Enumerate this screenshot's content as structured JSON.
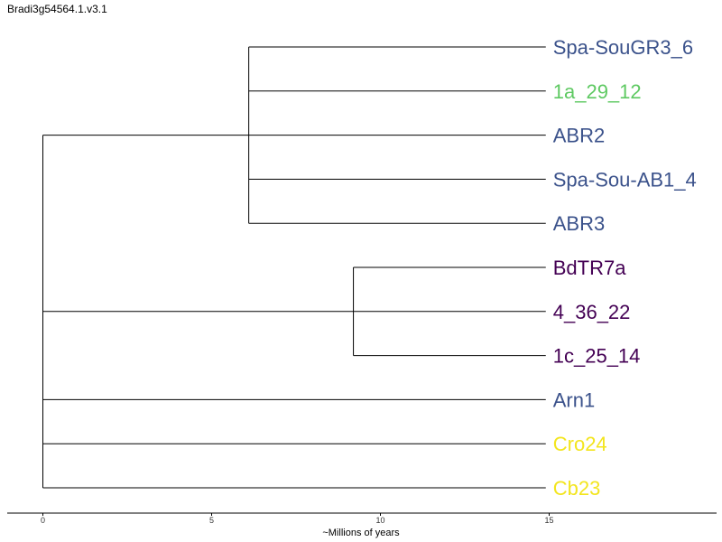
{
  "title": "Bradi3g54564.1.v3.1",
  "axis": {
    "label": "~Millions of years",
    "ticks": [
      {
        "value": 0,
        "label": "0"
      },
      {
        "value": 5,
        "label": "5"
      },
      {
        "value": 10,
        "label": "10"
      },
      {
        "value": 15,
        "label": "15"
      }
    ]
  },
  "colors": {
    "blue": "#3b528b",
    "green": "#5ec962",
    "purple": "#440154",
    "yellow": "#f3e51e"
  },
  "leaves": [
    {
      "name": "Spa-SouGR3_6",
      "color": "#3b528b"
    },
    {
      "name": "1a_29_12",
      "color": "#5ec962"
    },
    {
      "name": "ABR2",
      "color": "#3b528b"
    },
    {
      "name": "Spa-Sou-AB1_4",
      "color": "#3b528b"
    },
    {
      "name": "ABR3",
      "color": "#3b528b"
    },
    {
      "name": "BdTR7a",
      "color": "#440154"
    },
    {
      "name": "4_36_22",
      "color": "#440154"
    },
    {
      "name": "1c_25_14",
      "color": "#440154"
    },
    {
      "name": "Arn1",
      "color": "#3b528b"
    },
    {
      "name": "Cro24",
      "color": "#f3e51e"
    },
    {
      "name": "Cb23",
      "color": "#f3e51e"
    }
  ],
  "clades": [
    {
      "node_time": 6.1,
      "leaves": [
        0,
        1,
        2,
        3,
        4
      ]
    },
    {
      "node_time": 9.2,
      "leaves": [
        5,
        6,
        7
      ]
    }
  ],
  "tip_time": 14.9
}
